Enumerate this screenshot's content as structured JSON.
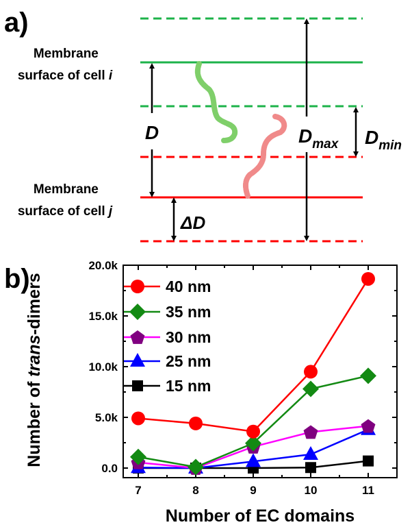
{
  "panel_a": {
    "label": "a)",
    "cell_i_label": [
      "Membrane",
      "surface of cell ",
      "i"
    ],
    "cell_j_label": [
      "Membrane",
      "surface of cell ",
      "j"
    ],
    "d_label": "D",
    "dmax_label": [
      "D",
      "max"
    ],
    "dmin_label": [
      "D",
      "min"
    ],
    "delta_d_label": "ΔD",
    "colors": {
      "green": "#1db34a",
      "red": "#ff0000"
    }
  },
  "chart_data": {
    "panel_label": "b)",
    "type": "line",
    "xlabel": "Number of EC domains",
    "ylabel": [
      "Number of ",
      "trans",
      "-dimers"
    ],
    "x": [
      7,
      8,
      9,
      10,
      11
    ],
    "xticks": [
      "7",
      "8",
      "9",
      "10",
      "11"
    ],
    "ylim": [
      0,
      20000
    ],
    "yticks": [
      0,
      5000,
      10000,
      15000,
      20000
    ],
    "yticklabels": [
      "0.0",
      "5.0k",
      "10.0k",
      "15.0k",
      "20.0k"
    ],
    "legend_position": "top-left",
    "series": [
      {
        "name": "40 nm",
        "color": "#ff0000",
        "marker": "circle",
        "marker_color": "#ff0000",
        "values": [
          4900,
          4400,
          3600,
          9500,
          18650
        ]
      },
      {
        "name": "35 nm",
        "color": "#138a13",
        "marker": "diamond",
        "marker_color": "#138a13",
        "values": [
          1100,
          100,
          2450,
          7800,
          9100
        ]
      },
      {
        "name": "30 nm",
        "color": "#ff00ff",
        "marker": "pentagon",
        "marker_color": "#800080",
        "values": [
          550,
          0,
          2100,
          3550,
          4150
        ]
      },
      {
        "name": "25 nm",
        "color": "#0000ff",
        "marker": "triangle",
        "marker_color": "#0000ff",
        "values": [
          50,
          0,
          650,
          1350,
          3800
        ]
      },
      {
        "name": "15 nm",
        "color": "#000000",
        "marker": "square",
        "marker_color": "#000000",
        "values": [
          0,
          0,
          0,
          50,
          700
        ]
      }
    ]
  }
}
